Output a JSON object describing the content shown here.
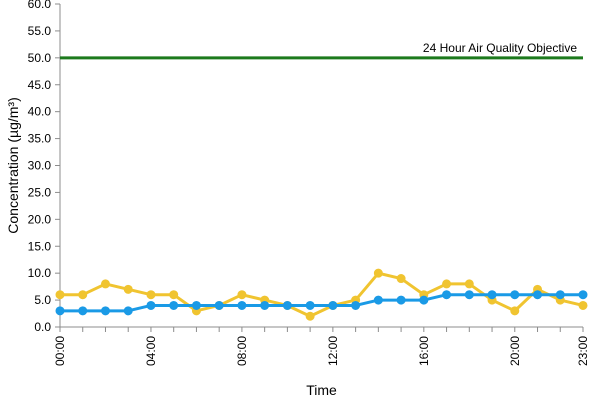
{
  "chart_data": {
    "type": "line",
    "title": "",
    "xlabel": "Time",
    "ylabel": "Concentration (µg/m³)",
    "ylim": [
      0,
      60
    ],
    "y_ticks": [
      "0.0",
      "5.0",
      "10.0",
      "15.0",
      "20.0",
      "25.0",
      "30.0",
      "35.0",
      "40.0",
      "45.0",
      "50.0",
      "55.0",
      "60.0"
    ],
    "x": [
      "00:00",
      "01:00",
      "02:00",
      "03:00",
      "04:00",
      "05:00",
      "06:00",
      "07:00",
      "08:00",
      "09:00",
      "10:00",
      "11:00",
      "12:00",
      "13:00",
      "14:00",
      "15:00",
      "16:00",
      "17:00",
      "18:00",
      "19:00",
      "20:00",
      "21:00",
      "22:00",
      "23:00"
    ],
    "x_tick_labels": [
      "00:00",
      "04:00",
      "08:00",
      "12:00",
      "16:00",
      "20:00",
      "23:00"
    ],
    "series": [
      {
        "color": "#f0c430",
        "values": [
          6,
          6,
          8,
          7,
          6,
          6,
          3,
          4,
          6,
          5,
          4,
          2,
          4,
          5,
          10,
          9,
          6,
          8,
          8,
          5,
          3,
          7,
          5,
          4
        ]
      },
      {
        "color": "#1a9ae6",
        "values": [
          3,
          3,
          3,
          3,
          4,
          4,
          4,
          4,
          4,
          4,
          4,
          4,
          4,
          4,
          5,
          5,
          5,
          6,
          6,
          6,
          6,
          6,
          6,
          6
        ]
      }
    ],
    "objective": {
      "label": "24 Hour Air Quality Objective",
      "value": 50,
      "color": "#1d7a1d"
    },
    "grid": false,
    "legend": "none"
  }
}
